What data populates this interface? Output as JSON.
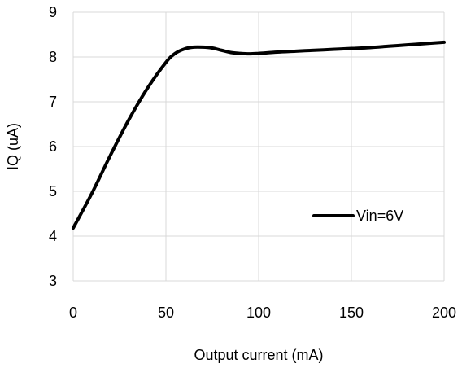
{
  "chart_data": {
    "type": "line",
    "xlabel": "Output current (mA)",
    "ylabel": "IQ (uA)",
    "xlim": [
      0,
      200
    ],
    "ylim": [
      3,
      9
    ],
    "xticks": [
      0,
      50,
      100,
      150,
      200
    ],
    "yticks": [
      3,
      4,
      5,
      6,
      7,
      8,
      9
    ],
    "grid": true,
    "legend_position": "right",
    "series": [
      {
        "name": "Vin=6V",
        "color": "#000000",
        "x": [
          0,
          10,
          20,
          30,
          40,
          50,
          55,
          60,
          65,
          70,
          75,
          80,
          85,
          90,
          95,
          100,
          110,
          120,
          130,
          140,
          150,
          160,
          170,
          180,
          190,
          200
        ],
        "y": [
          4.18,
          4.95,
          5.8,
          6.6,
          7.3,
          7.88,
          8.08,
          8.18,
          8.22,
          8.22,
          8.2,
          8.15,
          8.1,
          8.08,
          8.07,
          8.08,
          8.11,
          8.13,
          8.15,
          8.17,
          8.19,
          8.21,
          8.24,
          8.27,
          8.3,
          8.33
        ]
      }
    ]
  }
}
